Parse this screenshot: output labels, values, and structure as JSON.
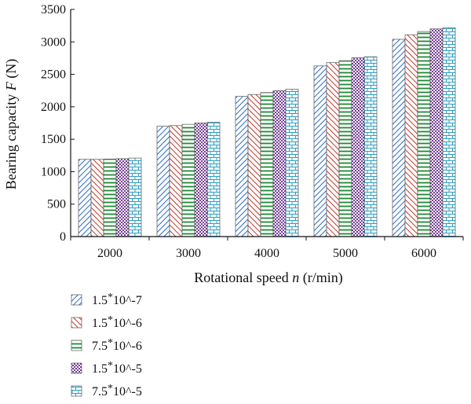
{
  "chart_data": {
    "type": "bar",
    "categories": [
      "2000",
      "3000",
      "4000",
      "5000",
      "6000"
    ],
    "series": [
      {
        "name": "1.5*10^-7",
        "values": [
          1190,
          1700,
          2160,
          2630,
          3040
        ],
        "pattern": "diag-right",
        "color": "#2a6bc4"
      },
      {
        "name": "1.5*10^-6",
        "values": [
          1190,
          1710,
          2190,
          2680,
          3110
        ],
        "pattern": "diag-left",
        "color": "#c0392b"
      },
      {
        "name": "7.5*10^-6",
        "values": [
          1195,
          1730,
          2220,
          2710,
          3160
        ],
        "pattern": "horizontal",
        "color": "#1e8a35"
      },
      {
        "name": "1.5*10^-5",
        "values": [
          1200,
          1750,
          2250,
          2755,
          3200
        ],
        "pattern": "dots",
        "color": "#6b2c91"
      },
      {
        "name": "7.5*10^-5",
        "values": [
          1210,
          1760,
          2270,
          2770,
          3220
        ],
        "pattern": "brick",
        "color": "#2a9fc4"
      }
    ],
    "xlabel": "Rotational speed n (r/min)",
    "xlabel_parts": {
      "pre": "Rotational speed ",
      "italic": "n",
      "post": " (r/min)"
    },
    "ylabel": "Bearing capacity F (N)",
    "ylabel_parts": {
      "pre": "Bearing capacity ",
      "italic": "F",
      "post": " (N)"
    },
    "ylim": [
      0,
      3500
    ],
    "yticks": [
      0,
      500,
      1000,
      1500,
      2000,
      2500,
      3000,
      3500
    ],
    "grid": false,
    "legend_position": "bottom-left"
  }
}
